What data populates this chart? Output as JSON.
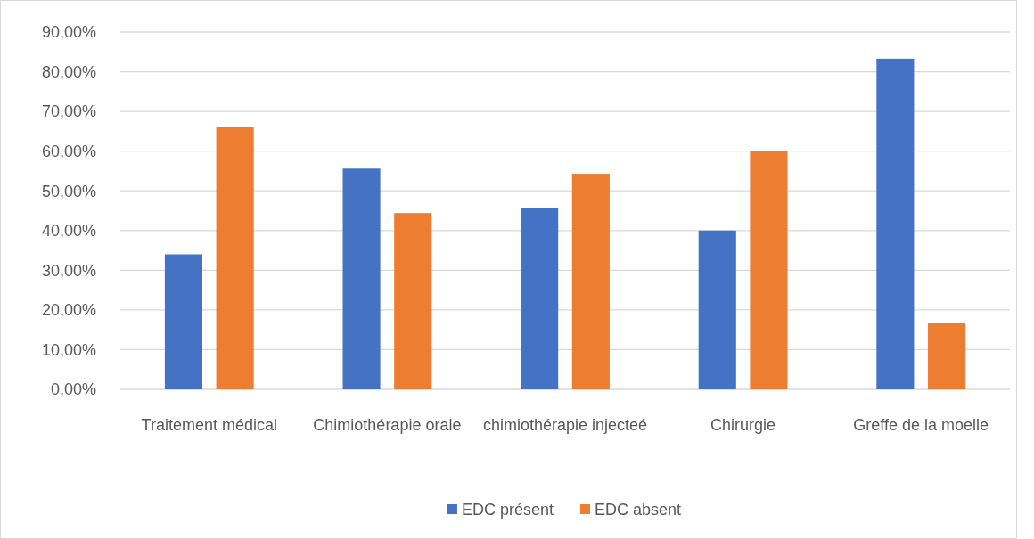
{
  "chart_data": {
    "type": "bar",
    "categories": [
      "Traitement médical",
      "Chimiothérapie orale",
      "chimiothérapie injecteé",
      "Chirurgie",
      "Greffe de la moelle"
    ],
    "series": [
      {
        "name": "EDC présent",
        "color": "#4472c4",
        "values": [
          34.0,
          55.6,
          45.7,
          40.0,
          83.3
        ]
      },
      {
        "name": "EDC absent",
        "color": "#ed7d31",
        "values": [
          66.0,
          44.4,
          54.3,
          60.0,
          16.7
        ]
      }
    ],
    "ylim": [
      0,
      90
    ],
    "yticks": [
      {
        "value": 0,
        "label": "0,00%"
      },
      {
        "value": 10,
        "label": "10,00%"
      },
      {
        "value": 20,
        "label": "20,00%"
      },
      {
        "value": 30,
        "label": "30,00%"
      },
      {
        "value": 40,
        "label": "40,00%"
      },
      {
        "value": 50,
        "label": "50,00%"
      },
      {
        "value": 60,
        "label": "60,00%"
      },
      {
        "value": 70,
        "label": "70,00%"
      },
      {
        "value": 80,
        "label": "80,00%"
      },
      {
        "value": 90,
        "label": "90,00%"
      }
    ],
    "grid": "y",
    "legend": "bottom"
  }
}
